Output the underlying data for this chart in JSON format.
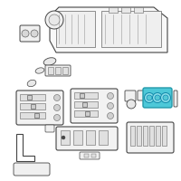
{
  "bg_color": "#ffffff",
  "highlight_color": "#4dc8d8",
  "line_color": "#999999",
  "dark_line": "#444444",
  "mid_line": "#666666"
}
